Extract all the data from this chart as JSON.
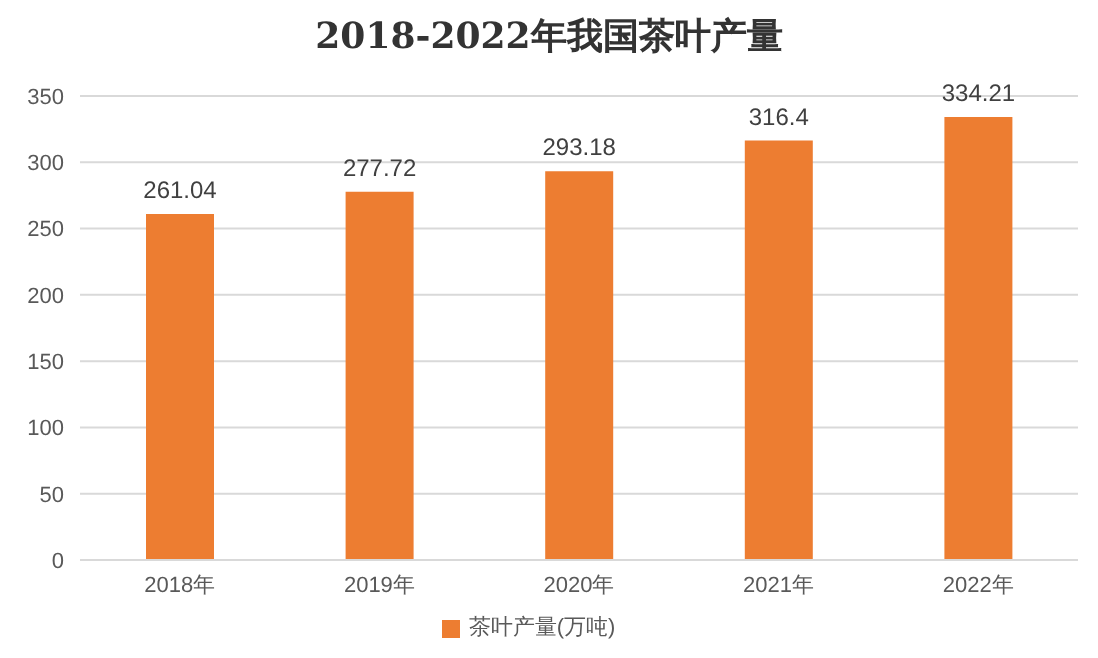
{
  "chart_data": {
    "type": "bar",
    "title": "2018-2022年我国茶叶产量",
    "categories": [
      "2018年",
      "2019年",
      "2020年",
      "2021年",
      "2022年"
    ],
    "series": [
      {
        "name": "茶叶产量(万吨)",
        "color": "#ed7d31",
        "values": [
          261.04,
          277.72,
          293.18,
          316.4,
          334.21
        ]
      }
    ],
    "ylim": [
      0,
      350
    ],
    "yticks": [
      0,
      50,
      100,
      150,
      200,
      250,
      300,
      350
    ],
    "grid": "y",
    "legend": "bottom",
    "data_labels": true
  }
}
